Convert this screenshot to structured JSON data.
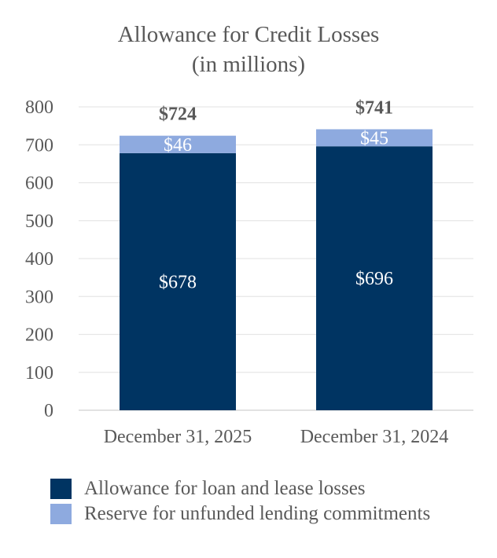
{
  "chart_data": {
    "type": "stacked-bar",
    "title": "Allowance for Credit Losses",
    "subtitle": "(in millions)",
    "categories": [
      "December 31, 2025",
      "December 31, 2024"
    ],
    "series": [
      {
        "name": "Allowance for loan and lease losses",
        "color": "#003462",
        "values": [
          678,
          696
        ],
        "labels": [
          "$678",
          "$696"
        ]
      },
      {
        "name": "Reserve for unfunded lending commitments",
        "color": "#8eaadf",
        "values": [
          46,
          45
        ],
        "labels": [
          "$46",
          "$45"
        ]
      }
    ],
    "totals": [
      724,
      741
    ],
    "total_labels": [
      "$724",
      "$741"
    ],
    "ylim": [
      0,
      800
    ],
    "yticks": [
      0,
      100,
      200,
      300,
      400,
      500,
      600,
      700,
      800
    ],
    "grid": true,
    "legend_position": "bottom"
  }
}
